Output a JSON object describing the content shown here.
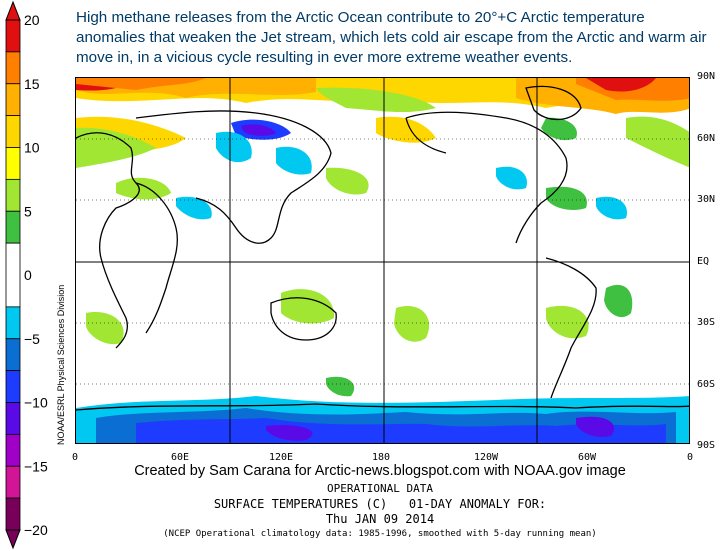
{
  "headline": "High methane releases from the Arctic Ocean contribute to 20°+C Arctic temperature anomalies that weaken the Jet stream, which lets cold air escape from the Arctic and warm air move in, in a vicious cycle resulting in ever more extreme weather events.",
  "colorbar": {
    "tick_labels": [
      "20",
      "15",
      "10",
      "5",
      "0",
      "−5",
      "−10",
      "−15",
      "−20"
    ],
    "ticks": [
      20,
      15,
      10,
      5,
      0,
      -5,
      -10,
      -15,
      -20
    ],
    "bands": [
      {
        "from": 17.5,
        "to": 20,
        "color": "#e01010"
      },
      {
        "from": 15,
        "to": 17.5,
        "color": "#ff7f00"
      },
      {
        "from": 12.5,
        "to": 15,
        "color": "#ffb000"
      },
      {
        "from": 10,
        "to": 12.5,
        "color": "#ffd700"
      },
      {
        "from": 7.5,
        "to": 10,
        "color": "#ffff00"
      },
      {
        "from": 5,
        "to": 7.5,
        "color": "#a0e632"
      },
      {
        "from": 2.5,
        "to": 5,
        "color": "#40c040"
      },
      {
        "from": -2.5,
        "to": 2.5,
        "color": "#ffffff"
      },
      {
        "from": -5,
        "to": -2.5,
        "color": "#00c8f0"
      },
      {
        "from": -7.5,
        "to": -5,
        "color": "#0a6ed2"
      },
      {
        "from": -10,
        "to": -7.5,
        "color": "#1e3cff"
      },
      {
        "from": -12.5,
        "to": -10,
        "color": "#5a0ae6"
      },
      {
        "from": -15,
        "to": -12.5,
        "color": "#a000c8"
      },
      {
        "from": -17.5,
        "to": -15,
        "color": "#d21496"
      },
      {
        "from": -20,
        "to": -17.5,
        "color": "#78005a"
      }
    ]
  },
  "map": {
    "lat_labels": [
      "90N",
      "60N",
      "30N",
      "EQ",
      "30S",
      "60S",
      "90S"
    ],
    "lon_labels": [
      "0",
      "60E",
      "120E",
      "180",
      "120W",
      "60W",
      "0"
    ],
    "side_label": "NOAA/ESRL Physical Sciences Division"
  },
  "credit": "Created by Sam Carana for Arctic-news.blogspot.com with NOAA.gov image",
  "caption": {
    "line1": "OPERATIONAL DATA",
    "line2": "SURFACE TEMPERATURES (C)   01-DAY ANOMALY FOR:",
    "line3": "Thu JAN 09 2014",
    "line4": "(NCEP Operational climatology data: 1985-1996, smoothed with 5-day running mean)"
  }
}
